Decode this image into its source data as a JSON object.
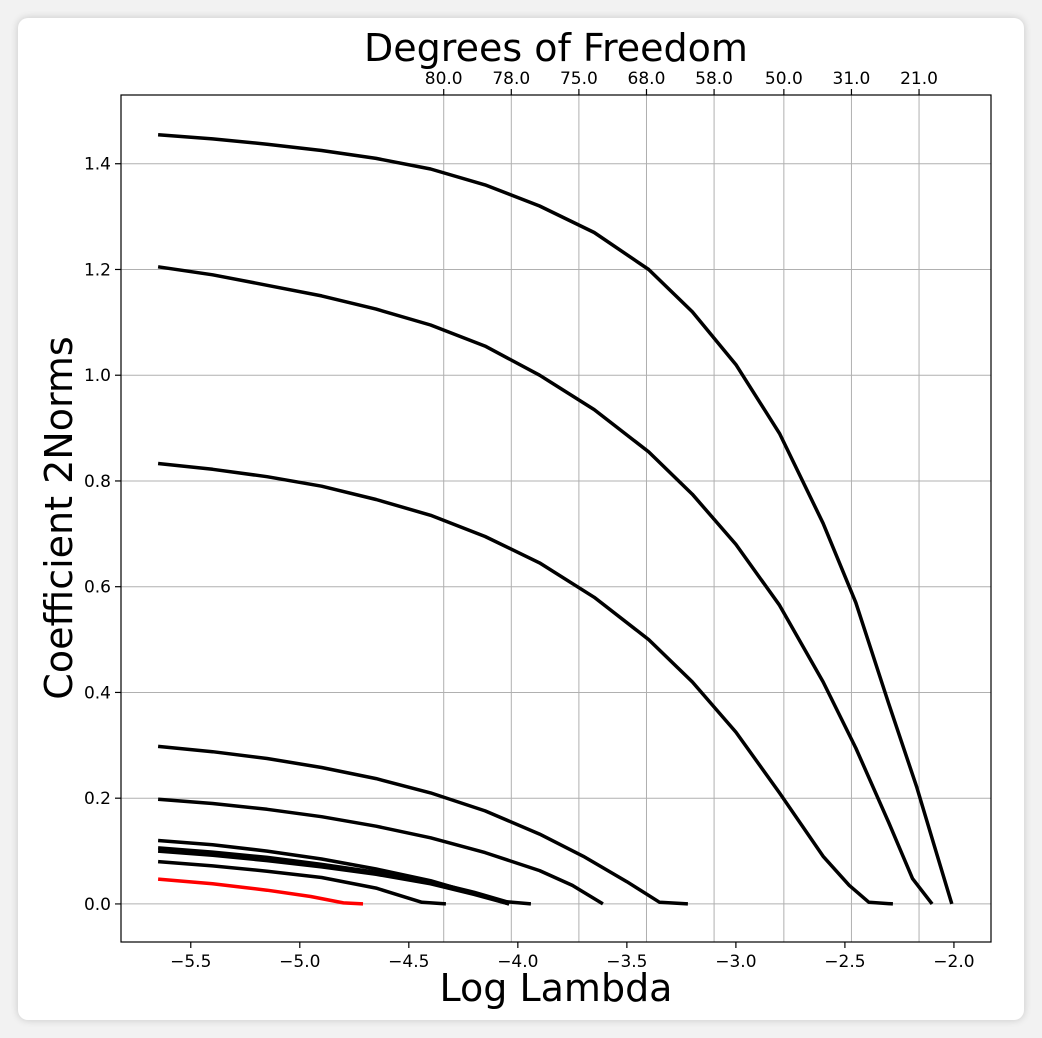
{
  "chart_data": {
    "type": "line",
    "title": "",
    "top_axis_label": "Degrees of Freedom",
    "xlabel": "Log Lambda",
    "ylabel": "Coefficient 2Norms",
    "xlim": [
      -5.82,
      -1.83
    ],
    "ylim": [
      -0.072,
      1.53
    ],
    "x_ticks": [
      -5.5,
      -5.0,
      -4.5,
      -4.0,
      -3.5,
      -3.0,
      -2.5,
      -2.0
    ],
    "x_tick_labels": [
      "−5.5",
      "−5.0",
      "−4.5",
      "−4.0",
      "−3.5",
      "−3.0",
      "−2.5",
      "−2.0"
    ],
    "y_ticks": [
      0.0,
      0.2,
      0.4,
      0.6,
      0.8,
      1.0,
      1.2,
      1.4
    ],
    "y_tick_labels": [
      "0.0",
      "0.2",
      "0.4",
      "0.6",
      "0.8",
      "1.0",
      "1.2",
      "1.4"
    ],
    "top_ticks": [
      {
        "x": -4.34,
        "label": "80.0"
      },
      {
        "x": -4.03,
        "label": "78.0"
      },
      {
        "x": -3.72,
        "label": "75.0"
      },
      {
        "x": -3.41,
        "label": "68.0"
      },
      {
        "x": -3.1,
        "label": "58.0"
      },
      {
        "x": -2.78,
        "label": "50.0"
      },
      {
        "x": -2.47,
        "label": "31.0"
      },
      {
        "x": -2.16,
        "label": "21.0"
      }
    ],
    "grid": true,
    "colors": {
      "default": "#000000",
      "highlight": "#ff0000",
      "grid": "#b0b0b0"
    },
    "series": [
      {
        "color": "#000000",
        "x": [
          -5.65,
          -5.4,
          -5.15,
          -4.9,
          -4.65,
          -4.4,
          -4.15,
          -3.9,
          -3.65,
          -3.4,
          -3.2,
          -3.0,
          -2.8,
          -2.6,
          -2.45,
          -2.3,
          -2.17,
          -2.09,
          -2.01
        ],
        "y": [
          1.455,
          1.447,
          1.437,
          1.425,
          1.41,
          1.39,
          1.36,
          1.32,
          1.27,
          1.2,
          1.12,
          1.02,
          0.89,
          0.72,
          0.57,
          0.38,
          0.22,
          0.11,
          0.0
        ]
      },
      {
        "color": "#000000",
        "x": [
          -5.65,
          -5.4,
          -5.15,
          -4.9,
          -4.65,
          -4.4,
          -4.15,
          -3.9,
          -3.65,
          -3.4,
          -3.2,
          -3.0,
          -2.8,
          -2.6,
          -2.45,
          -2.3,
          -2.19,
          -2.1
        ],
        "y": [
          1.205,
          1.19,
          1.17,
          1.15,
          1.125,
          1.095,
          1.055,
          1.0,
          0.935,
          0.855,
          0.775,
          0.68,
          0.565,
          0.42,
          0.295,
          0.155,
          0.048,
          0.0
        ]
      },
      {
        "color": "#000000",
        "x": [
          -5.65,
          -5.4,
          -5.15,
          -4.9,
          -4.65,
          -4.4,
          -4.15,
          -3.9,
          -3.65,
          -3.4,
          -3.2,
          -3.0,
          -2.8,
          -2.6,
          -2.48,
          -2.39,
          -2.28
        ],
        "y": [
          0.833,
          0.822,
          0.808,
          0.79,
          0.765,
          0.735,
          0.695,
          0.645,
          0.58,
          0.5,
          0.42,
          0.325,
          0.21,
          0.09,
          0.035,
          0.003,
          0.0
        ]
      },
      {
        "color": "#000000",
        "x": [
          -5.65,
          -5.4,
          -5.15,
          -4.9,
          -4.65,
          -4.4,
          -4.15,
          -3.9,
          -3.7,
          -3.5,
          -3.35,
          -3.22
        ],
        "y": [
          0.298,
          0.288,
          0.275,
          0.258,
          0.237,
          0.21,
          0.176,
          0.132,
          0.09,
          0.042,
          0.003,
          0.0
        ]
      },
      {
        "color": "#000000",
        "x": [
          -5.65,
          -5.4,
          -5.15,
          -4.9,
          -4.65,
          -4.4,
          -4.15,
          -3.9,
          -3.75,
          -3.61
        ],
        "y": [
          0.198,
          0.19,
          0.179,
          0.165,
          0.147,
          0.125,
          0.097,
          0.063,
          0.035,
          0.0
        ]
      },
      {
        "color": "#000000",
        "x": [
          -5.65,
          -5.4,
          -5.15,
          -4.9,
          -4.65,
          -4.4,
          -4.2,
          -4.04
        ],
        "y": [
          0.12,
          0.112,
          0.1,
          0.085,
          0.066,
          0.044,
          0.02,
          0.0
        ]
      },
      {
        "color": "#000000",
        "x": [
          -5.65,
          -5.4,
          -5.15,
          -4.9,
          -4.65,
          -4.4,
          -4.2,
          -4.05,
          -3.94
        ],
        "y": [
          0.106,
          0.098,
          0.088,
          0.075,
          0.06,
          0.042,
          0.022,
          0.004,
          0.0
        ]
      },
      {
        "color": "#000000",
        "x": [
          -5.65,
          -5.4,
          -5.15,
          -4.9,
          -4.65,
          -4.4,
          -4.2,
          -4.04
        ],
        "y": [
          0.1,
          0.092,
          0.082,
          0.07,
          0.056,
          0.038,
          0.018,
          0.0
        ]
      },
      {
        "color": "#000000",
        "x": [
          -5.65,
          -5.4,
          -5.15,
          -4.9,
          -4.65,
          -4.44,
          -4.33
        ],
        "y": [
          0.08,
          0.072,
          0.062,
          0.05,
          0.03,
          0.003,
          0.0
        ]
      },
      {
        "color": "#ff0000",
        "x": [
          -5.65,
          -5.4,
          -5.15,
          -4.95,
          -4.8,
          -4.71
        ],
        "y": [
          0.047,
          0.038,
          0.026,
          0.014,
          0.002,
          0.0
        ]
      }
    ]
  }
}
